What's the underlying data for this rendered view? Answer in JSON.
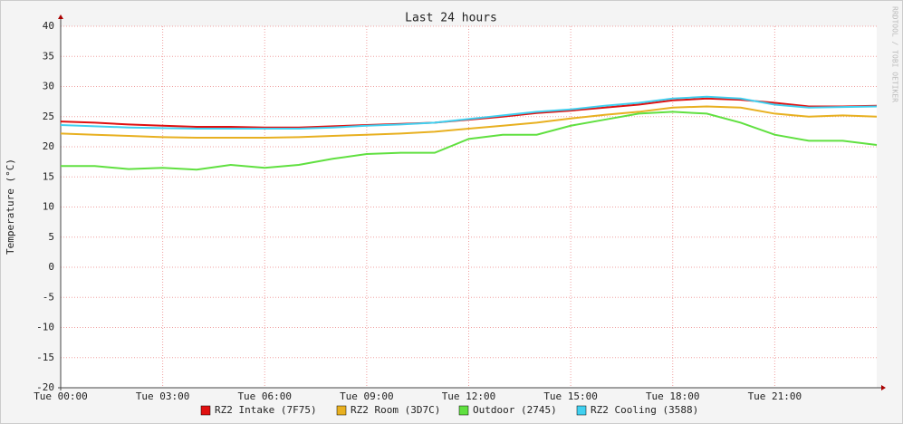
{
  "chart_data": {
    "type": "line",
    "title": "Last 24 hours",
    "y_label": "Temperature (°C)",
    "watermark": "RRDTOOL / TOBI OETIKER",
    "x": [
      0,
      1,
      2,
      3,
      4,
      5,
      6,
      7,
      8,
      9,
      10,
      11,
      12,
      13,
      14,
      15,
      16,
      17,
      18,
      19,
      20,
      21,
      22,
      23,
      24
    ],
    "xlim": [
      0,
      24
    ],
    "xticks": [
      {
        "value": 0,
        "label": "Tue 00:00"
      },
      {
        "value": 3,
        "label": "Tue 03:00"
      },
      {
        "value": 6,
        "label": "Tue 06:00"
      },
      {
        "value": 9,
        "label": "Tue 09:00"
      },
      {
        "value": 12,
        "label": "Tue 12:00"
      },
      {
        "value": 15,
        "label": "Tue 15:00"
      },
      {
        "value": 18,
        "label": "Tue 18:00"
      },
      {
        "value": 21,
        "label": "Tue 21:00"
      }
    ],
    "ylim": [
      -20,
      40
    ],
    "yticks": [
      -20,
      -15,
      -10,
      -5,
      0,
      5,
      10,
      15,
      20,
      25,
      30,
      35,
      40
    ],
    "grid": true,
    "series": [
      {
        "name": "RZ2 Intake (7F75)",
        "color": "#e01010",
        "values": [
          24.2,
          24,
          23.7,
          23.5,
          23.3,
          23.3,
          23.2,
          23.2,
          23.4,
          23.6,
          23.8,
          24,
          24.5,
          25,
          25.6,
          26,
          26.5,
          27,
          27.7,
          28,
          27.8,
          27.3,
          26.7,
          26.7,
          26.8
        ]
      },
      {
        "name": "RZ2 Room (3D7C)",
        "color": "#e8b020",
        "values": [
          22.2,
          22,
          21.8,
          21.6,
          21.5,
          21.5,
          21.5,
          21.6,
          21.8,
          22,
          22.2,
          22.5,
          23,
          23.5,
          24,
          24.7,
          25.3,
          25.8,
          26.5,
          26.7,
          26.5,
          25.5,
          25,
          25.2,
          25
        ]
      },
      {
        "name": "Outdoor (2745)",
        "color": "#60e040",
        "values": [
          16.8,
          16.8,
          16.3,
          16.5,
          16.2,
          17,
          16.5,
          17,
          18,
          18.8,
          19,
          19,
          21.3,
          22,
          22,
          23.5,
          24.5,
          25.5,
          25.8,
          25.5,
          24,
          22,
          21,
          21,
          20.3
        ]
      },
      {
        "name": "RZ2 Cooling (3588)",
        "color": "#40d0f0",
        "values": [
          23.6,
          23.4,
          23.2,
          23.1,
          23,
          23,
          23,
          23,
          23.2,
          23.5,
          23.7,
          24,
          24.6,
          25.2,
          25.8,
          26.2,
          26.8,
          27.3,
          28,
          28.3,
          28,
          27,
          26.5,
          26.6,
          26.7
        ]
      }
    ]
  }
}
